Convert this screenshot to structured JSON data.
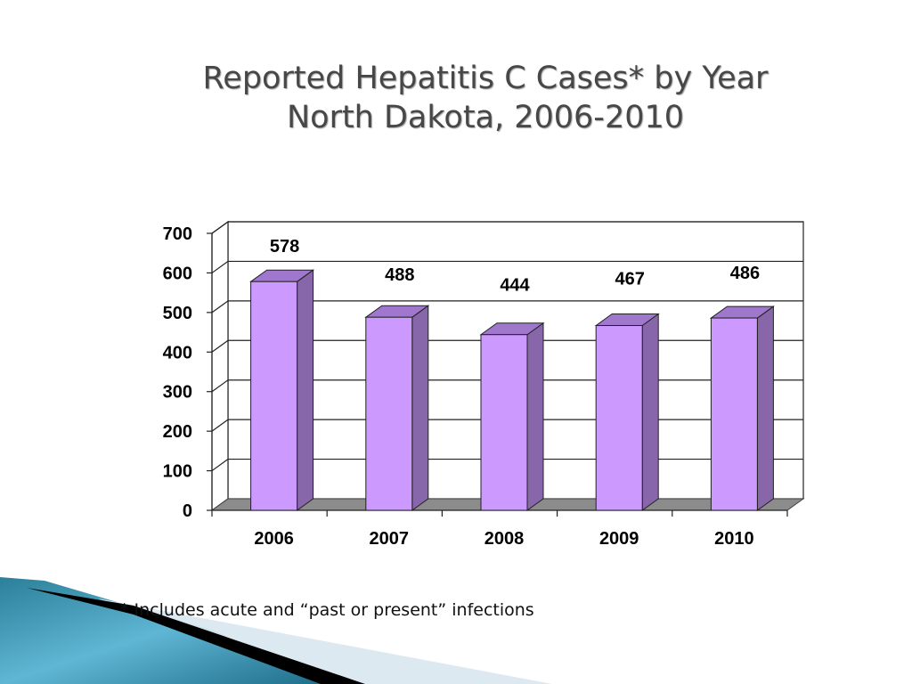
{
  "title": {
    "line1": "Reported Hepatitis C Cases* by Year",
    "line2": "North Dakota, 2006-2010"
  },
  "footnote": "* Includes acute and “past or present” infections",
  "colors": {
    "bar_front": "#cc99ff",
    "bar_side": "#8866aa",
    "bar_top": "#9f77cc",
    "floor": "#8c8c8c",
    "title": "#474747"
  },
  "chart_data": {
    "type": "bar",
    "title": "Reported Hepatitis C Cases* by Year North Dakota, 2006-2010",
    "xlabel": "",
    "ylabel": "",
    "categories": [
      "2006",
      "2007",
      "2008",
      "2009",
      "2010"
    ],
    "values": [
      578,
      488,
      444,
      467,
      486
    ],
    "data_labels": [
      "578",
      "488",
      "444",
      "467",
      "486"
    ],
    "ylim": [
      0,
      700
    ],
    "yticks": [
      0,
      100,
      200,
      300,
      400,
      500,
      600,
      700
    ],
    "ytick_labels": [
      "0",
      "100",
      "200",
      "300",
      "400",
      "500",
      "600",
      "700"
    ],
    "grid": true,
    "style": "3d",
    "legend": "none"
  }
}
